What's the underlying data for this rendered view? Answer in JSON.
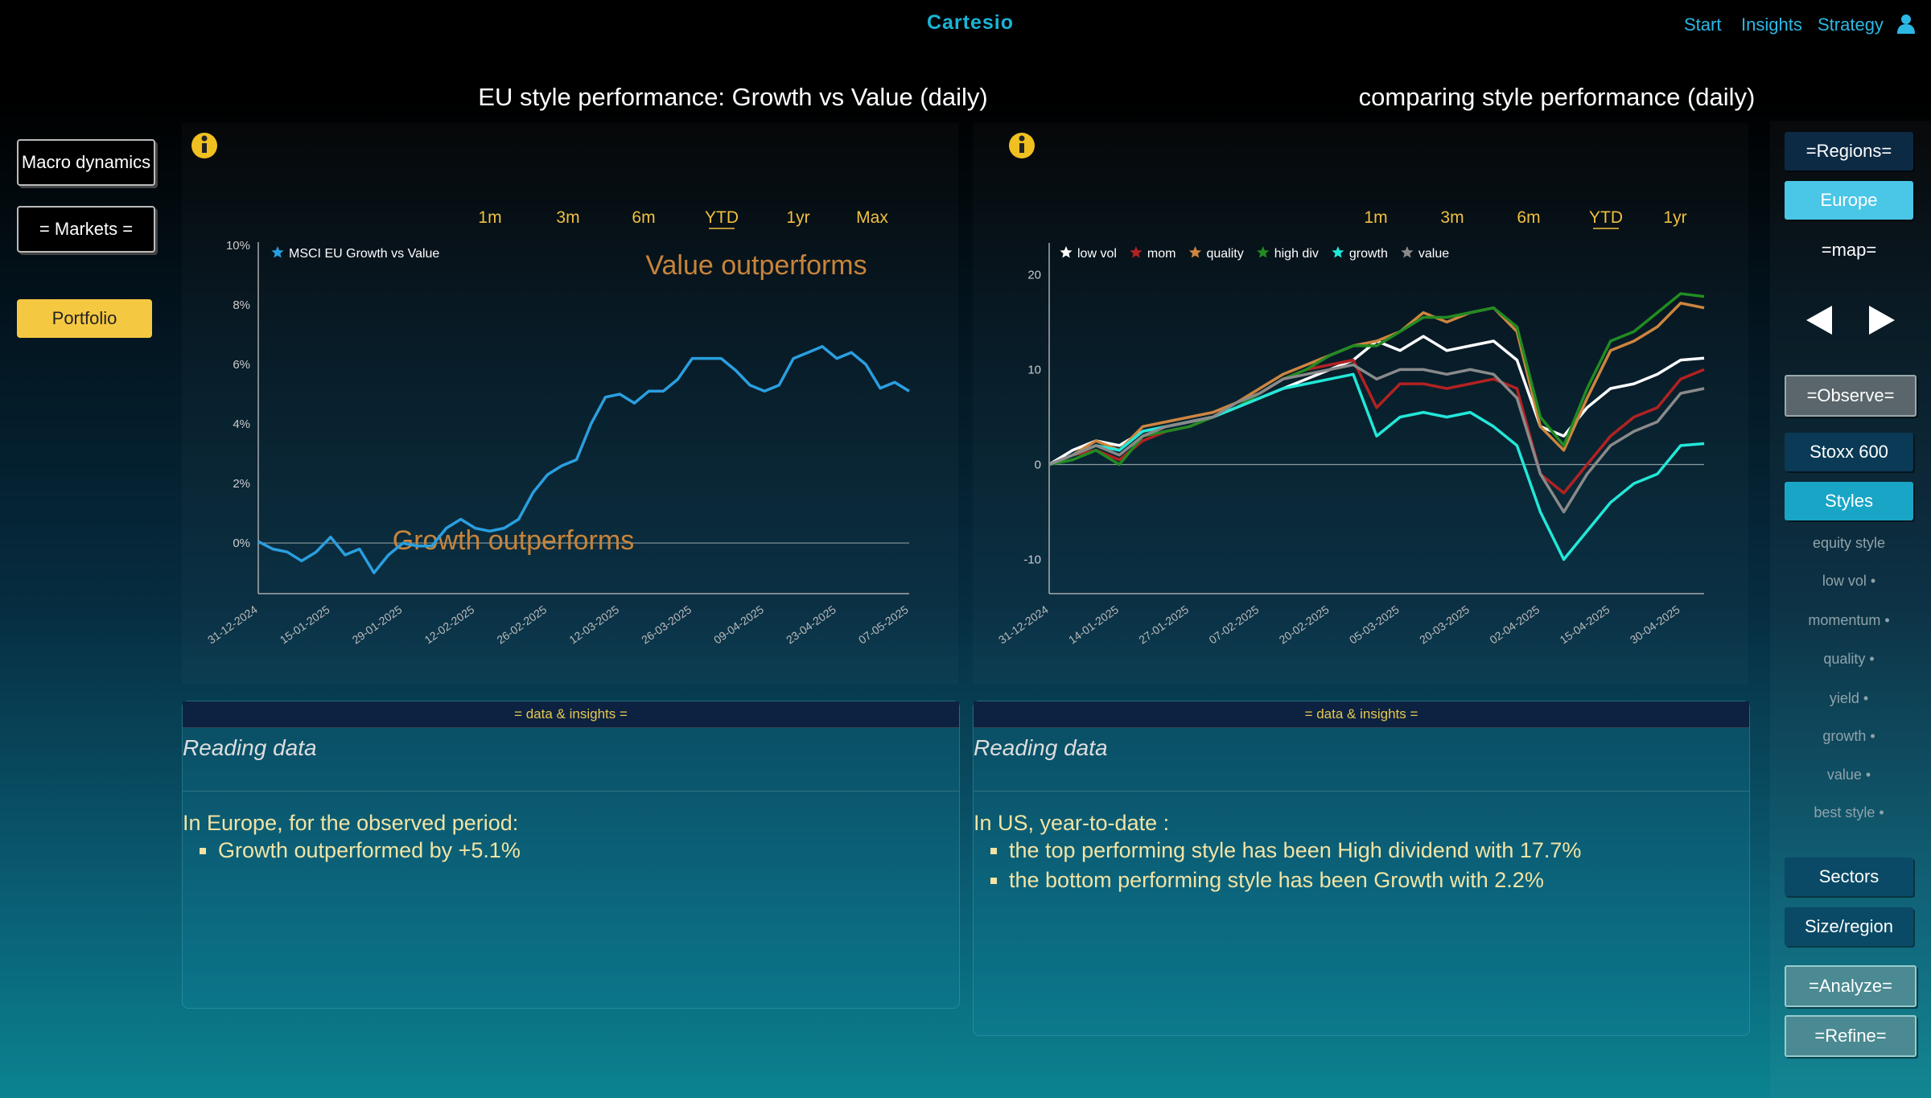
{
  "header": {
    "brand": "Cartesio",
    "nav": [
      "Start",
      "Insights",
      "Strategy"
    ]
  },
  "left_nav": [
    "Macro dynamics",
    "= Markets =",
    "Portfolio"
  ],
  "right_nav": [
    "=Regions=",
    "Europe",
    "=map=",
    "=Observe=",
    "Stoxx 600",
    "Styles",
    "equity style",
    "low vol •",
    "momentum •",
    "quality •",
    "yield •",
    "growth •",
    "value •",
    "best style •",
    "Sectors",
    "Size/region",
    "=Analyze=",
    "=Refine="
  ],
  "chart_data": [
    {
      "type": "line",
      "title": "EU style performance: Growth vs Value (daily)",
      "range_buttons": [
        "1m",
        "3m",
        "6m",
        "YTD",
        "1yr",
        "Max"
      ],
      "selected_range": "YTD",
      "annotations": [
        "Value outperforms",
        "Growth outperforms"
      ],
      "annotation_color": "#c8843a",
      "legend": "top-left",
      "categories": [
        "31-12-2024",
        null,
        null,
        null,
        null,
        "15-01-2025",
        null,
        null,
        null,
        null,
        "29-01-2025",
        null,
        null,
        null,
        null,
        "12-02-2025",
        null,
        null,
        null,
        null,
        "26-02-2025",
        null,
        null,
        null,
        null,
        "12-03-2025",
        null,
        null,
        null,
        null,
        "26-03-2025",
        null,
        null,
        null,
        null,
        "09-04-2025",
        null,
        null,
        null,
        null,
        "23-04-2025",
        null,
        null,
        null,
        null,
        "07-05-2025"
      ],
      "series": [
        {
          "name": "MSCI EU Growth vs Value",
          "color": "#2a9fe0",
          "values": [
            0.05,
            -0.2,
            -0.3,
            -0.6,
            -0.3,
            0.2,
            -0.4,
            -0.2,
            -1.0,
            -0.4,
            0.0,
            -0.1,
            -0.1,
            0.5,
            0.8,
            0.5,
            0.4,
            0.5,
            0.8,
            1.7,
            2.3,
            2.6,
            2.8,
            4.0,
            4.9,
            5.0,
            4.7,
            5.1,
            5.1,
            5.5,
            6.2,
            6.2,
            6.2,
            5.8,
            5.3,
            5.1,
            5.3,
            6.2,
            6.4,
            6.6,
            6.2,
            6.4,
            6.0,
            5.2,
            5.4,
            5.1
          ]
        }
      ],
      "ylim": [
        -1.7,
        10
      ],
      "yticks": [
        {
          "value": 0,
          "label": "0%"
        },
        {
          "value": 2,
          "label": "2%"
        },
        {
          "value": 4,
          "label": "4%"
        },
        {
          "value": 6,
          "label": "6%"
        },
        {
          "value": 8,
          "label": "8%"
        },
        {
          "value": 10,
          "label": "10%"
        }
      ]
    },
    {
      "type": "line",
      "title": "comparing style performance (daily)",
      "range_buttons": [
        "1m",
        "3m",
        "6m",
        "YTD",
        "1yr"
      ],
      "selected_range": "YTD",
      "legend": "top-left",
      "categories": [
        "31-12-2024",
        null,
        null,
        "14-01-2025",
        null,
        null,
        "27-01-2025",
        null,
        null,
        "07-02-2025",
        null,
        null,
        "20-02-2025",
        null,
        null,
        "05-03-2025",
        null,
        null,
        "20-03-2025",
        null,
        null,
        "02-04-2025",
        null,
        null,
        "15-04-2025",
        null,
        null,
        "30-04-2025",
        null
      ],
      "series": [
        {
          "name": "low vol",
          "color": "#ffffff",
          "values": [
            0,
            1.5,
            2.5,
            2,
            3.5,
            4,
            4.5,
            5,
            6,
            7,
            8,
            9,
            10,
            11,
            13,
            12,
            13.5,
            12,
            12.5,
            13,
            11,
            4,
            3,
            6,
            8,
            8.5,
            9.5,
            11,
            11.2
          ]
        },
        {
          "name": "mom",
          "color": "#b22222",
          "values": [
            0,
            1,
            1.5,
            0.5,
            2.5,
            3.5,
            4,
            5,
            6.5,
            7.5,
            9,
            10,
            10.5,
            11,
            6,
            8.5,
            8.5,
            8,
            8.5,
            9,
            8,
            -1,
            -3,
            0,
            3,
            5,
            6,
            9,
            10
          ]
        },
        {
          "name": "quality",
          "color": "#cd853f",
          "values": [
            0,
            1,
            2.5,
            1.5,
            4,
            4.5,
            5,
            5.5,
            6.5,
            8,
            9.5,
            10.5,
            11.5,
            12.5,
            13,
            14,
            16,
            15,
            16,
            16.5,
            14,
            4,
            1.5,
            7,
            12,
            13,
            14.5,
            17,
            16.5
          ]
        },
        {
          "name": "high div",
          "color": "#228b22",
          "values": [
            0,
            0.5,
            1.5,
            0,
            3,
            3.5,
            4,
            5,
            6,
            7.5,
            9,
            10,
            11.5,
            12.5,
            12.5,
            14,
            15.5,
            15.5,
            16,
            16.5,
            14.5,
            5,
            2,
            8,
            13,
            14,
            16,
            18,
            17.7
          ]
        },
        {
          "name": "growth",
          "color": "#22e8d8",
          "values": [
            0,
            1,
            2,
            1.5,
            3.5,
            4,
            4.5,
            5,
            6,
            7,
            8,
            8.5,
            9,
            9.5,
            3,
            5,
            5.5,
            5,
            5.5,
            4,
            2,
            -5,
            -10,
            -7,
            -4,
            -2,
            -1,
            2,
            2.2
          ]
        },
        {
          "name": "value",
          "color": "#8a8a8a",
          "values": [
            0,
            1,
            2,
            1,
            3,
            4,
            4.5,
            5,
            6.5,
            7.5,
            9,
            9.5,
            10,
            10.5,
            9,
            10,
            10,
            9.5,
            10,
            9.5,
            7,
            -1,
            -5,
            -1,
            2,
            3.5,
            4.5,
            7.5,
            8
          ]
        }
      ],
      "ylim": [
        -13.6,
        23
      ],
      "yticks": [
        -10,
        0,
        10,
        20
      ]
    }
  ],
  "insights": [
    {
      "header": "= data & insights =",
      "title": "Reading data",
      "intro": "In Europe, for the observed period:",
      "bullets": [
        "Growth outperformed by +5.1%"
      ]
    },
    {
      "header": "= data & insights =",
      "title": "Reading data",
      "intro": "In US, year-to-date :",
      "bullets": [
        "the top performing style has been High dividend  with 17.7%",
        "the bottom performing style has been Growth  with 2.2%"
      ]
    }
  ]
}
